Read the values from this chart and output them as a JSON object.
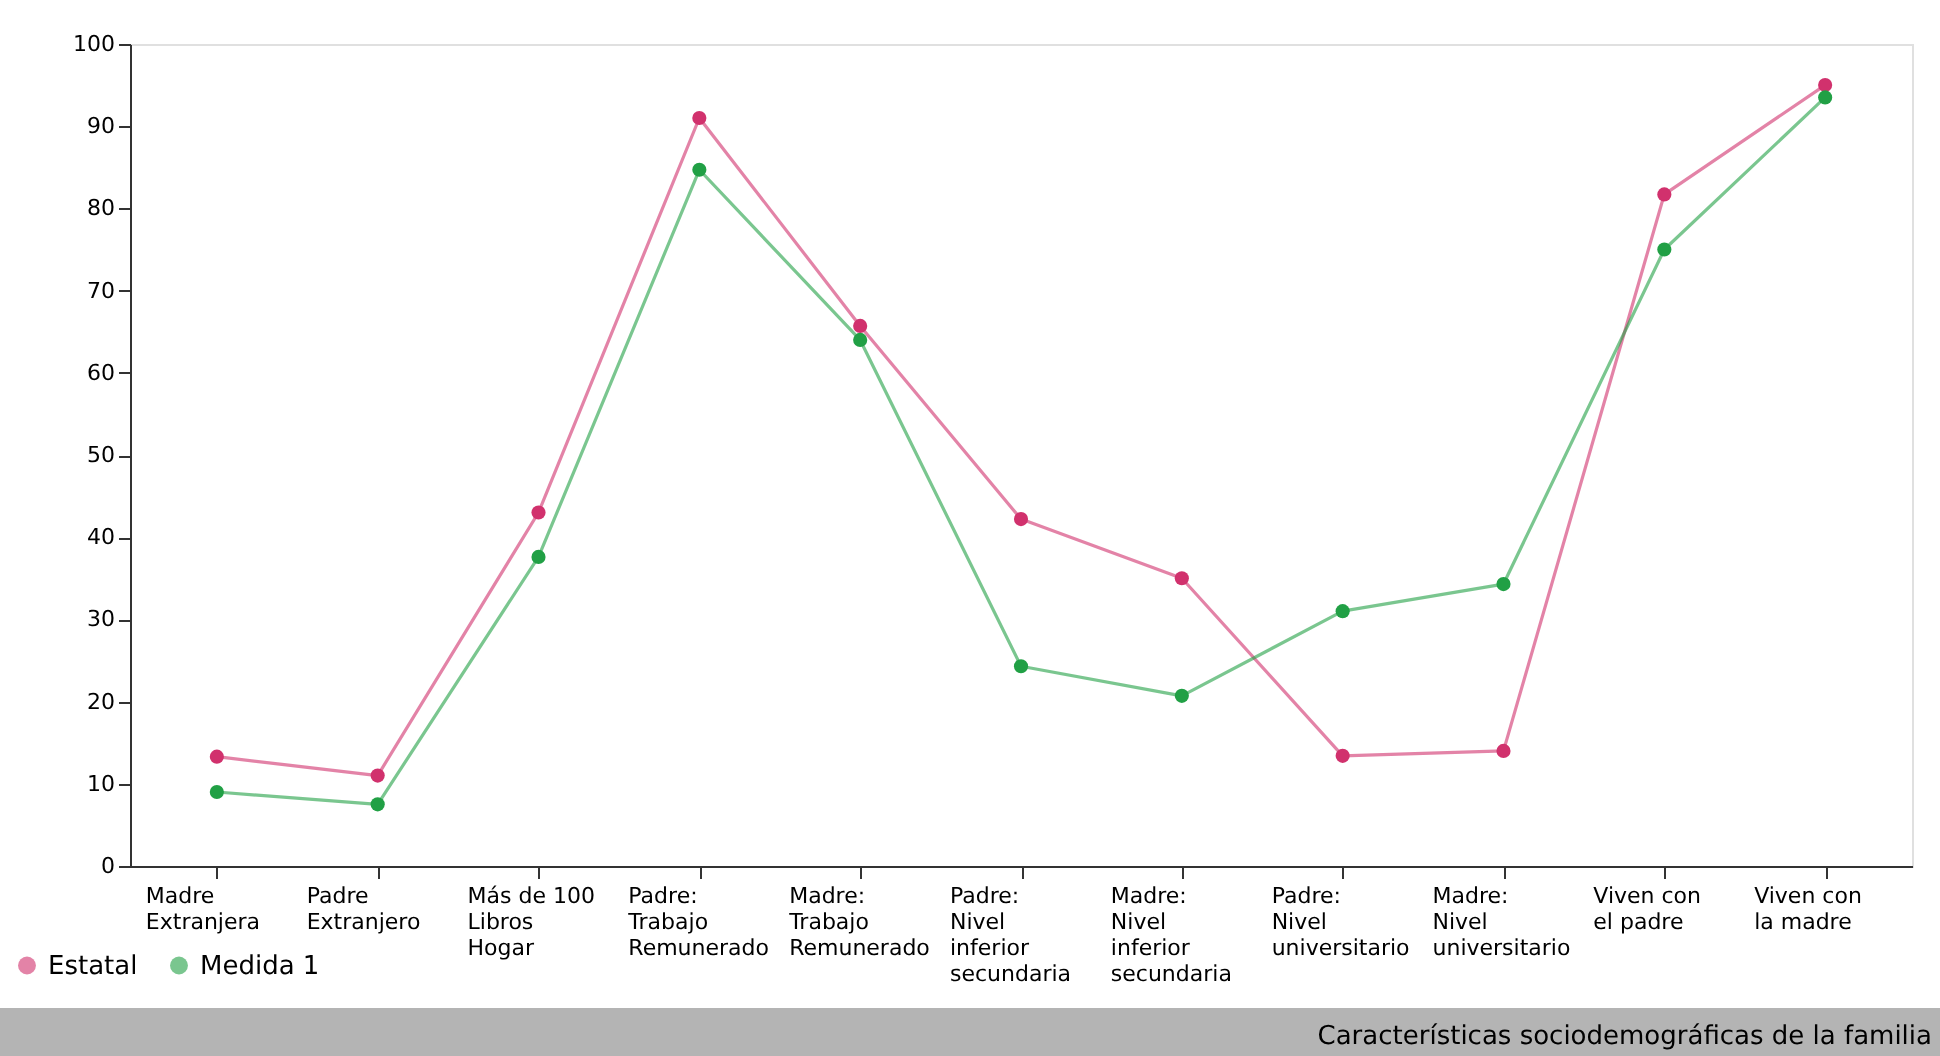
{
  "chart_data": {
    "type": "line",
    "title": "Características sociodemográficas de la familia",
    "categories": [
      "Madre Extranjera",
      "Padre Extranjero",
      "Más de 100 Libros Hogar",
      "Padre: Trabajo Remunerado",
      "Madre: Trabajo Remunerado",
      "Padre: Nivel inferior secundaria",
      "Madre: Nivel inferior secundaria",
      "Padre: Nivel universitario",
      "Madre: Nivel universitario",
      "Viven con el padre",
      "Viven con la madre"
    ],
    "series": [
      {
        "name": "Estatal",
        "color": "#d1316d",
        "values": [
          13.3,
          11,
          43,
          91,
          65.7,
          42.2,
          35,
          13.4,
          14,
          81.7,
          95
        ]
      },
      {
        "name": "Medida 1",
        "color": "#21a045",
        "values": [
          9,
          7.5,
          37.6,
          84.7,
          64,
          24.3,
          20.7,
          31,
          34.3,
          75,
          93.5
        ]
      }
    ],
    "ylim": [
      0,
      100
    ],
    "yticks": [
      0,
      10,
      20,
      30,
      40,
      50,
      60,
      70,
      80,
      90,
      100
    ],
    "grid": false,
    "legend": "bottom left",
    "marker": "circle",
    "line_style": "solid"
  }
}
